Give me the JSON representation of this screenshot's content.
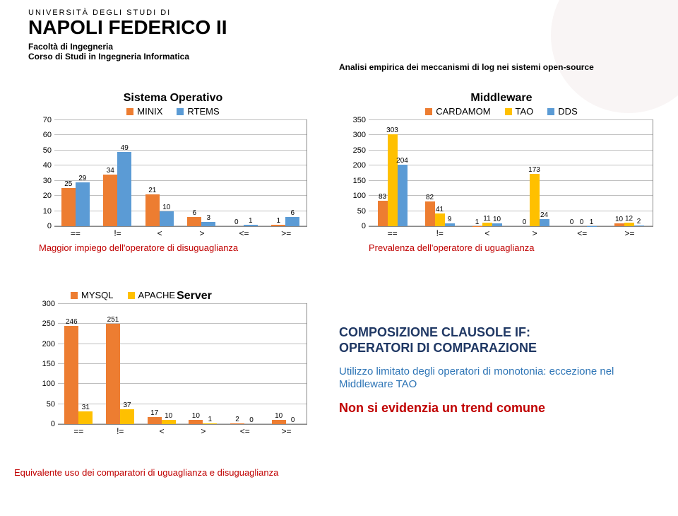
{
  "header": {
    "uni_top": "UNIVERSITÀ DEGLI STUDI DI",
    "uni_mid": "NAPOLI FEDERICO II",
    "faculty": "Facoltà di Ingegneria",
    "course": "Corso di Studi in Ingegneria Informatica",
    "right_title": "Analisi empirica dei meccanismi di log nei sistemi open-source"
  },
  "charts": {
    "os": {
      "title": "Sistema Operativo",
      "series": [
        {
          "name": "MINIX",
          "color": "#ed7d31"
        },
        {
          "name": "RTEMS",
          "color": "#5b9bd5"
        }
      ],
      "categories": [
        "==",
        "!=",
        "<",
        ">",
        "<=",
        ">="
      ],
      "values": [
        [
          25,
          29
        ],
        [
          34,
          49
        ],
        [
          21,
          10
        ],
        [
          6,
          3
        ],
        [
          0,
          1
        ],
        [
          1,
          6
        ]
      ],
      "ymax": 70,
      "ystep": 10,
      "caption": "Maggior impiego dell'operatore di disuguaglianza",
      "caption_color": "#c00000"
    },
    "mw": {
      "title": "Middleware",
      "series": [
        {
          "name": "CARDAMOM",
          "color": "#ed7d31"
        },
        {
          "name": "TAO",
          "color": "#ffc000"
        },
        {
          "name": "DDS",
          "color": "#5b9bd5"
        }
      ],
      "categories": [
        "==",
        "!=",
        "<",
        ">",
        "<=",
        ">="
      ],
      "values": [
        [
          83,
          303,
          204
        ],
        [
          82,
          41,
          9
        ],
        [
          1,
          11,
          10
        ],
        [
          0,
          173,
          24
        ],
        [
          0,
          0,
          1
        ],
        [
          10,
          12,
          2
        ]
      ],
      "ymax": 350,
      "ystep": 50,
      "caption": "Prevalenza dell'operatore  di uguaglianza",
      "caption_color": "#c00000"
    },
    "srv": {
      "title": "Server",
      "series": [
        {
          "name": "MYSQL",
          "color": "#ed7d31"
        },
        {
          "name": "APACHE",
          "color": "#ffc000"
        }
      ],
      "categories": [
        "==",
        "!=",
        "<",
        ">",
        "<=",
        ">="
      ],
      "values": [
        [
          246,
          31
        ],
        [
          251,
          37
        ],
        [
          17,
          10
        ],
        [
          10,
          1
        ],
        [
          2,
          0
        ],
        [
          10,
          0
        ]
      ],
      "ymax": 300,
      "ystep": 50,
      "caption": "Equivalente uso dei comparatori di uguaglianza e disuguaglianza",
      "caption_color": "#c00000"
    }
  },
  "bullets": {
    "title1": "COMPOSIZIONE CLAUSOLE IF:",
    "title2": "OPERATORI DI COMPARAZIONE",
    "blue": "Utilizzo limitato degli operatori di monotonia: eccezione nel Middleware TAO",
    "red": "Non si evidenzia un trend comune"
  }
}
